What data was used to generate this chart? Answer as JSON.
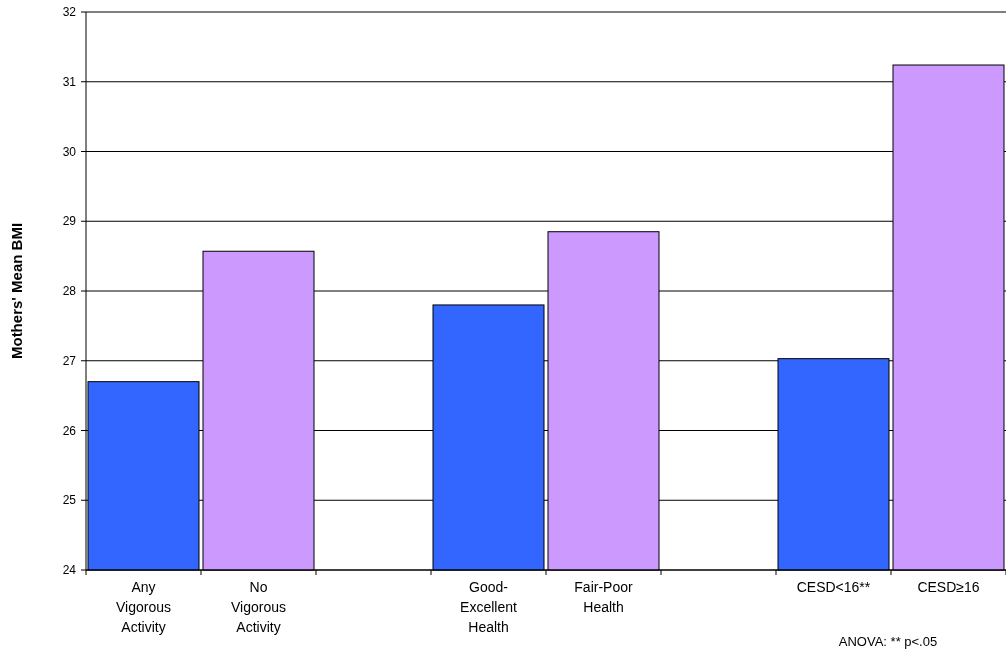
{
  "chart_data": {
    "type": "bar",
    "ylabel": "Mothers' Mean BMI",
    "categories": [
      "Any Vigorous Activity",
      "No Vigorous Activity",
      null,
      "Good-Excellent Health",
      "Fair-Poor Health",
      null,
      "CESD<16**",
      "CESD≥16"
    ],
    "values": [
      26.7,
      28.57,
      null,
      27.8,
      28.85,
      null,
      27.03,
      31.24
    ],
    "colors": [
      "#3366ff",
      "#cc99ff",
      null,
      "#3366ff",
      "#cc99ff",
      null,
      "#3366ff",
      "#cc99ff"
    ],
    "ylim": [
      24,
      32
    ],
    "yticks": [
      24,
      25,
      26,
      27,
      28,
      29,
      30,
      31,
      32
    ],
    "grid": "y",
    "annotations": [
      "ANOVA: ** p<.05"
    ]
  }
}
